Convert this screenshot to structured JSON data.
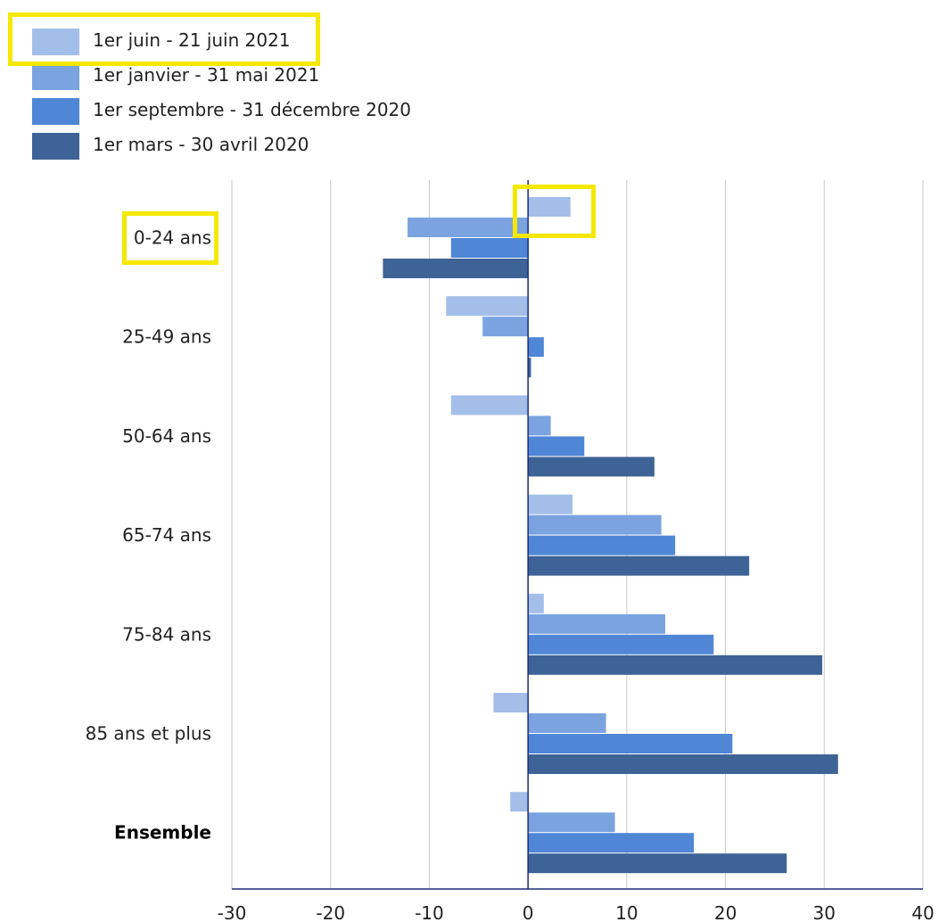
{
  "chart_data": {
    "type": "bar",
    "orientation": "horizontal",
    "categories": [
      "0-24 ans",
      "25-49 ans",
      "50-64 ans",
      "65-74 ans",
      "75-84 ans",
      "85 ans et plus",
      "Ensemble"
    ],
    "series": [
      {
        "name": "1er juin - 21 juin 2021",
        "color": "#a3bfe9",
        "values": [
          4.3,
          -8.3,
          -7.8,
          4.5,
          1.6,
          -3.5,
          -1.8
        ]
      },
      {
        "name": "1er janvier - 31 mai 2021",
        "color": "#7aa3e0",
        "values": [
          -12.2,
          -4.6,
          2.3,
          13.5,
          13.9,
          7.9,
          8.8
        ]
      },
      {
        "name": "1er septembre - 31 décembre 2020",
        "color": "#4f86d6",
        "values": [
          -7.8,
          1.6,
          5.7,
          14.9,
          18.8,
          20.7,
          16.8
        ]
      },
      {
        "name": "1er mars - 30 avril 2020",
        "color": "#3e6396",
        "values": [
          -14.7,
          0.3,
          12.8,
          22.4,
          29.8,
          31.4,
          26.2
        ]
      }
    ],
    "xticks": [
      "-30",
      "-20",
      "-10",
      "0",
      "10",
      "20",
      "30",
      "40"
    ],
    "xlim": [
      -30,
      40
    ],
    "grid": true,
    "legend_position": "top-left",
    "highlights": [
      "legend: 1er juin - 21 juin 2021",
      "bar: 0-24 ans / 1er juin - 21 juin 2021",
      "category label: 0-24 ans"
    ],
    "highlight_color": "#f4e800"
  }
}
